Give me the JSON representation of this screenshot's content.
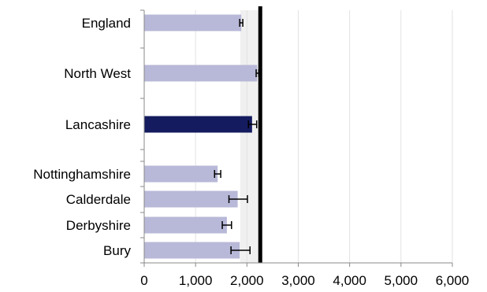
{
  "chart_data": {
    "type": "bar",
    "orientation": "horizontal",
    "categories": [
      "England",
      "North West",
      "Lancashire",
      "Nottinghamshire",
      "Calderdale",
      "Derbyshire",
      "Bury"
    ],
    "values": [
      1890,
      2200,
      2100,
      1430,
      1820,
      1610,
      1860
    ],
    "error_low": [
      1860,
      2180,
      2030,
      1370,
      1650,
      1520,
      1690
    ],
    "error_high": [
      1920,
      2230,
      2190,
      1490,
      2010,
      1700,
      2060
    ],
    "highlight": "Lancashire",
    "reference_line": 2260,
    "shaded_range": [
      1870,
      2260
    ],
    "xlim": [
      0,
      6000
    ],
    "x_ticks": [
      0,
      1000,
      2000,
      3000,
      4000,
      5000,
      6000
    ],
    "x_tick_labels": [
      "0",
      "1,000",
      "2,000",
      "3,000",
      "4,000",
      "5,000",
      "6,000"
    ],
    "grid": "vertical",
    "colors": {
      "bar": "#b8b8d8",
      "highlight_bar": "#141b5e",
      "shaded_range": "#f0f0f0",
      "reference_line": "#000000",
      "grid": "#e2e2e2",
      "axis": "#898989"
    }
  }
}
